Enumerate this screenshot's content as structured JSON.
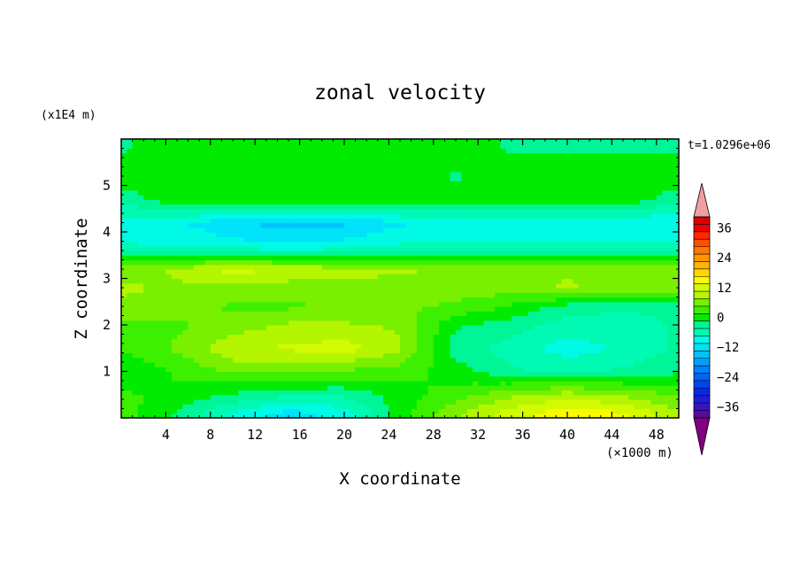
{
  "chart_data": {
    "type": "heatmap",
    "title": "zonal velocity",
    "xlabel": "X coordinate",
    "ylabel": "Z coordinate",
    "x_unit": "(×1000 m)",
    "y_unit": "(x1E4 m)",
    "time_label": "t=1.0296e+06",
    "xlim": [
      0,
      50
    ],
    "ylim": [
      0,
      6
    ],
    "x_ticks": [
      "4",
      "8",
      "12",
      "16",
      "20",
      "24",
      "28",
      "32",
      "36",
      "40",
      "44",
      "48"
    ],
    "y_ticks": [
      "1",
      "2",
      "3",
      "4",
      "5"
    ],
    "colorbar": {
      "ticks": [
        "36",
        "24",
        "12",
        "0",
        "-12",
        "-24",
        "-36"
      ],
      "levels": [
        {
          "value": -42,
          "color": "#800080"
        },
        {
          "value": -39,
          "color": "#5a0aa0"
        },
        {
          "value": -36,
          "color": "#3c14be"
        },
        {
          "value": -33,
          "color": "#1e1ed2"
        },
        {
          "value": -30,
          "color": "#0a28e6"
        },
        {
          "value": -27,
          "color": "#0046f0"
        },
        {
          "value": -24,
          "color": "#0064f5"
        },
        {
          "value": -21,
          "color": "#0082fa"
        },
        {
          "value": -18,
          "color": "#00a0fa"
        },
        {
          "value": -15,
          "color": "#00c3fa"
        },
        {
          "value": -12,
          "color": "#00e1fa"
        },
        {
          "value": -9,
          "color": "#00fae6"
        },
        {
          "value": -6,
          "color": "#00fab4"
        },
        {
          "value": -3,
          "color": "#00f596"
        },
        {
          "value": 0,
          "color": "#00eb00"
        },
        {
          "value": 3,
          "color": "#3cf000"
        },
        {
          "value": 6,
          "color": "#78f000"
        },
        {
          "value": 9,
          "color": "#b4f500"
        },
        {
          "value": 12,
          "color": "#d2fa00"
        },
        {
          "value": 15,
          "color": "#fafa00"
        },
        {
          "value": 18,
          "color": "#ffd700"
        },
        {
          "value": 21,
          "color": "#ffb400"
        },
        {
          "value": 24,
          "color": "#ff9600"
        },
        {
          "value": 27,
          "color": "#ff7800"
        },
        {
          "value": 30,
          "color": "#ff5000"
        },
        {
          "value": 33,
          "color": "#ff2800"
        },
        {
          "value": 36,
          "color": "#f00000"
        },
        {
          "value": 39,
          "color": "#dc0000"
        },
        {
          "value": 42,
          "color": "#f0a0a0"
        }
      ]
    },
    "field": {
      "z_rows": [
        5.8,
        5.2,
        4.7,
        4.2,
        3.7,
        3.2,
        2.8,
        2.4,
        2.0,
        1.5,
        1.0,
        0.5,
        0.1
      ],
      "x_cols": [
        0,
        5,
        10,
        15,
        20,
        25,
        30,
        35,
        40,
        45,
        50
      ],
      "values": [
        [
          -2,
          1,
          1,
          1,
          1,
          1,
          1,
          -2,
          -2,
          -2,
          -2
        ],
        [
          1,
          1,
          1,
          1,
          1,
          1,
          -2,
          1,
          1,
          1,
          1
        ],
        [
          -4,
          1,
          1,
          1,
          1,
          1,
          1,
          1,
          1,
          1,
          -4
        ],
        [
          -9,
          -10,
          -13,
          -15,
          -14,
          -11,
          -10,
          -10,
          -10,
          -10,
          -10
        ],
        [
          -7,
          -8,
          -9,
          -10,
          -9,
          -7,
          -7,
          -7,
          -7,
          -7,
          -7
        ],
        [
          6,
          8,
          12,
          10,
          9,
          8,
          7,
          7,
          7,
          6,
          6
        ],
        [
          8,
          7,
          6,
          6,
          6,
          6,
          6,
          6,
          8,
          6,
          6
        ],
        [
          7,
          6,
          4,
          4,
          5,
          5,
          4,
          1,
          -3,
          -4,
          -4
        ],
        [
          4,
          4,
          6,
          8,
          8,
          7,
          -1,
          -3,
          -6,
          -6,
          -4
        ],
        [
          2,
          5,
          10,
          11,
          12,
          8,
          -3,
          -6,
          -9,
          -7,
          -4
        ],
        [
          -2,
          2,
          5,
          5,
          4,
          3,
          0,
          -4,
          -5,
          -4,
          -2
        ],
        [
          2,
          1,
          -2,
          -4,
          -4,
          0,
          3,
          7,
          9,
          7,
          4
        ],
        [
          3,
          -2,
          -8,
          -12,
          -9,
          0,
          7,
          12,
          16,
          14,
          8
        ]
      ]
    }
  }
}
